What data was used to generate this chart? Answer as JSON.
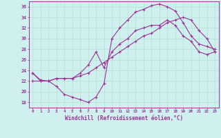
{
  "xlabel": "Windchill (Refroidissement éolien,°C)",
  "bg_color": "#cff0ee",
  "line_color": "#993399",
  "xlim": [
    -0.5,
    23.5
  ],
  "ylim": [
    17.0,
    37.0
  ],
  "yticks": [
    18,
    20,
    22,
    24,
    26,
    28,
    30,
    32,
    34,
    36
  ],
  "xticks": [
    0,
    1,
    2,
    3,
    4,
    5,
    6,
    7,
    8,
    9,
    10,
    11,
    12,
    13,
    14,
    15,
    16,
    17,
    18,
    19,
    20,
    21,
    22,
    23
  ],
  "line1_x": [
    0,
    1,
    2,
    3,
    4,
    5,
    6,
    7,
    8,
    9,
    10,
    11,
    12,
    13,
    14,
    15,
    16,
    17,
    18,
    19,
    20,
    21,
    22,
    23
  ],
  "line1_y": [
    23.5,
    22.0,
    22.0,
    21.0,
    19.5,
    19.0,
    18.5,
    18.0,
    19.0,
    21.5,
    30.0,
    32.0,
    33.5,
    35.0,
    35.5,
    36.2,
    36.5,
    36.0,
    35.2,
    33.0,
    30.5,
    29.0,
    28.5,
    28.0
  ],
  "line2_x": [
    0,
    1,
    2,
    3,
    4,
    5,
    6,
    7,
    8,
    9,
    10,
    11,
    12,
    13,
    14,
    15,
    16,
    17,
    18,
    19,
    20,
    21,
    22,
    23
  ],
  "line2_y": [
    23.5,
    22.2,
    22.0,
    22.5,
    22.5,
    22.5,
    23.5,
    25.0,
    27.5,
    24.5,
    27.5,
    29.0,
    30.0,
    31.5,
    32.0,
    32.5,
    32.5,
    33.5,
    32.5,
    30.5,
    29.5,
    27.5,
    27.0,
    27.5
  ],
  "line3_x": [
    0,
    1,
    2,
    3,
    4,
    5,
    6,
    7,
    8,
    9,
    10,
    11,
    12,
    13,
    14,
    15,
    16,
    17,
    18,
    19,
    20,
    21,
    22,
    23
  ],
  "line3_y": [
    22.0,
    22.0,
    22.0,
    22.5,
    22.5,
    22.5,
    23.0,
    23.5,
    24.5,
    25.5,
    26.5,
    27.5,
    28.5,
    29.5,
    30.5,
    31.0,
    32.0,
    33.0,
    33.5,
    34.0,
    33.5,
    31.5,
    30.0,
    27.5
  ]
}
